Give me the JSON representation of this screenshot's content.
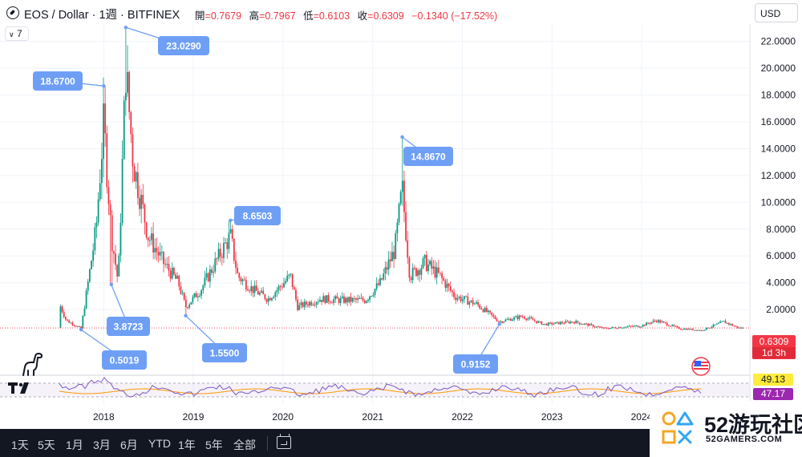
{
  "header": {
    "symbol_text": "EOS / Dollar · 1週 · BITFINEX",
    "ohlc": [
      {
        "key": "開",
        "value": "=0.7679"
      },
      {
        "key": "高",
        "value": "=0.7967"
      },
      {
        "key": "低",
        "value": "=0.6103"
      },
      {
        "key": "收",
        "value": "=0.6309"
      }
    ],
    "change": "−0.1340 (−17.52%)",
    "currency": "USD",
    "indicator_toggle": "7",
    "icons": {
      "symbol_logo": "eos-logo-icon",
      "collapse": "chevron-down-icon"
    }
  },
  "price_tag": {
    "price": "0.6309",
    "countdown": "1d 3h"
  },
  "rsi_tags": [
    {
      "value": "49.13",
      "bg": "#ffeb3b",
      "fg": "#131722"
    },
    {
      "value": "47.17",
      "bg": "#9c27b0",
      "fg": "#ffffff"
    }
  ],
  "footer": {
    "timeframes": [
      "1天",
      "5天",
      "1月",
      "3月",
      "6月",
      "YTD",
      "1年",
      "5年",
      "全部"
    ],
    "icons": {
      "date_range": "calendar-range-icon"
    }
  },
  "watermark": {
    "brand": "52游玩社区",
    "domain": "52GAMERS.COM"
  },
  "colors": {
    "up": "#089981",
    "down": "#f23645",
    "annotation": "#6e9ff5",
    "rsi_line": "#7e57c2",
    "rsi_ma": "#ff9800",
    "background": "#ffffff",
    "footer": "#131722"
  },
  "chart_data": {
    "type": "candlestick",
    "interval": "1週",
    "y_axis": {
      "side": "right",
      "ticks": [
        2,
        4,
        6,
        8,
        10,
        12,
        14,
        16,
        18,
        20,
        22
      ],
      "tick_labels": [
        "2.0000",
        "4.0000",
        "6.0000",
        "8.0000",
        "10.0000",
        "12.0000",
        "14.0000",
        "16.0000",
        "18.0000",
        "20.0000",
        "22.0000"
      ],
      "range": [
        -0.5,
        24
      ]
    },
    "x_axis": {
      "year_labels": [
        "2018",
        "2019",
        "2020",
        "2021",
        "2022",
        "2023",
        "2024"
      ],
      "range": [
        "2017-07",
        "2025-03"
      ]
    },
    "annotations": [
      {
        "label": "18.6700",
        "date": "2018-01",
        "value": 18.67,
        "kind": "high"
      },
      {
        "label": "23.0290",
        "date": "2018-04",
        "value": 23.029,
        "kind": "high"
      },
      {
        "label": "3.8723",
        "date": "2018-02",
        "value": 3.8723,
        "kind": "low"
      },
      {
        "label": "0.5019",
        "date": "2017-10",
        "value": 0.5019,
        "kind": "low"
      },
      {
        "label": "8.6503",
        "date": "2019-06",
        "value": 8.6503,
        "kind": "high"
      },
      {
        "label": "1.5500",
        "date": "2018-12",
        "value": 1.55,
        "kind": "low"
      },
      {
        "label": "14.8670",
        "date": "2021-05",
        "value": 14.867,
        "kind": "high"
      },
      {
        "label": "0.9152",
        "date": "2022-06",
        "value": 0.9152,
        "kind": "low"
      }
    ],
    "price_path": [
      {
        "date": "2017-07",
        "close": 2.6
      },
      {
        "date": "2017-08",
        "close": 1.2
      },
      {
        "date": "2017-10",
        "close": 0.6
      },
      {
        "date": "2017-12",
        "close": 8.0
      },
      {
        "date": "2018-01",
        "close": 16.0
      },
      {
        "date": "2018-02",
        "close": 7.5
      },
      {
        "date": "2018-03",
        "close": 4.0
      },
      {
        "date": "2018-04",
        "close": 20.0
      },
      {
        "date": "2018-05",
        "close": 13.0
      },
      {
        "date": "2018-07",
        "close": 7.5
      },
      {
        "date": "2018-09",
        "close": 5.5
      },
      {
        "date": "2018-11",
        "close": 4.0
      },
      {
        "date": "2018-12",
        "close": 2.2
      },
      {
        "date": "2019-02",
        "close": 3.5
      },
      {
        "date": "2019-04",
        "close": 5.5
      },
      {
        "date": "2019-06",
        "close": 7.5
      },
      {
        "date": "2019-07",
        "close": 4.5
      },
      {
        "date": "2019-09",
        "close": 3.5
      },
      {
        "date": "2019-11",
        "close": 2.8
      },
      {
        "date": "2020-02",
        "close": 4.5
      },
      {
        "date": "2020-03",
        "close": 2.2
      },
      {
        "date": "2020-06",
        "close": 2.8
      },
      {
        "date": "2020-09",
        "close": 2.7
      },
      {
        "date": "2020-12",
        "close": 2.7
      },
      {
        "date": "2021-02",
        "close": 4.0
      },
      {
        "date": "2021-04",
        "close": 6.5
      },
      {
        "date": "2021-05",
        "close": 11.0
      },
      {
        "date": "2021-06",
        "close": 4.5
      },
      {
        "date": "2021-08",
        "close": 5.5
      },
      {
        "date": "2021-10",
        "close": 4.5
      },
      {
        "date": "2021-12",
        "close": 3.0
      },
      {
        "date": "2022-03",
        "close": 2.4
      },
      {
        "date": "2022-06",
        "close": 1.1
      },
      {
        "date": "2022-09",
        "close": 1.5
      },
      {
        "date": "2022-12",
        "close": 0.9
      },
      {
        "date": "2023-04",
        "close": 1.1
      },
      {
        "date": "2023-08",
        "close": 0.6
      },
      {
        "date": "2024-01",
        "close": 0.8
      },
      {
        "date": "2024-03",
        "close": 1.2
      },
      {
        "date": "2024-06",
        "close": 0.6
      },
      {
        "date": "2024-09",
        "close": 0.45
      },
      {
        "date": "2024-12",
        "close": 1.1
      },
      {
        "date": "2025-02",
        "close": 0.63
      }
    ],
    "current_price": 0.6309,
    "rsi": {
      "ticks": [
        49.13,
        47.17
      ],
      "bands": [
        30,
        70
      ]
    }
  }
}
